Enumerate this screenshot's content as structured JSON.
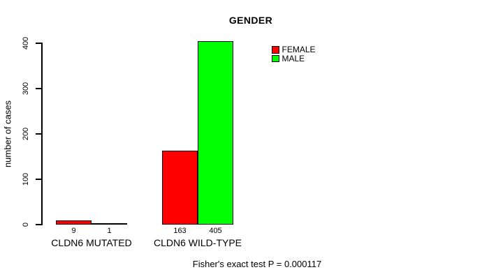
{
  "chart_data": {
    "type": "bar",
    "title": "GENDER",
    "xlabel": "",
    "ylabel": "number of cases",
    "categories": [
      "CLDN6 MUTATED",
      "CLDN6 WILD-TYPE"
    ],
    "series": [
      {
        "name": "FEMALE",
        "color": "#ff0000",
        "values": [
          9,
          163
        ]
      },
      {
        "name": "MALE",
        "color": "#00ff00",
        "values": [
          1,
          405
        ]
      }
    ],
    "ylim": [
      0,
      400
    ],
    "yticks": [
      0,
      100,
      200,
      300,
      400
    ],
    "bar_value_labels": [
      [
        9,
        1
      ],
      [
        163,
        405
      ]
    ],
    "legend_position": "top-right",
    "grid": false,
    "annotation": "Fisher's exact test P = 0.000117"
  },
  "colors": {
    "female": "#ff0000",
    "male": "#00ff00",
    "axis": "#000000",
    "background": "#ffffff"
  }
}
